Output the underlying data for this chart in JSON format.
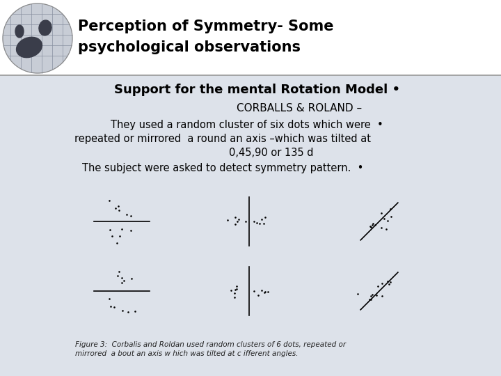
{
  "title_line1": "Perception of Symmetry- Some",
  "title_line2": "psychological observations",
  "subtitle": "Support for the mental Rotation Model •",
  "line2": "CORBALLS & ROLAND –",
  "line3": "They used a random cluster of six dots which were  •",
  "line4": "repeated or mirrored  a round an axis –which was tilted at",
  "line5": "0,45,90 or 135 d",
  "line6": "The subject were asked to detect symmetry pattern.  •",
  "caption_line1": "Figure 3:  Corbalis and Roldan used random clusters of 6 dots, repeated or",
  "caption_line2": "mirrored  a bout an axis w hich was tilted at c ifferent angles.",
  "bg_color": "#dde2ea",
  "title_bg": "#ffffff",
  "header_line_color": "#999999",
  "text_color": "#000000",
  "title_font_size": 15,
  "subtitle_font_size": 13,
  "body_font_size": 10.5,
  "caption_font_size": 7.5
}
